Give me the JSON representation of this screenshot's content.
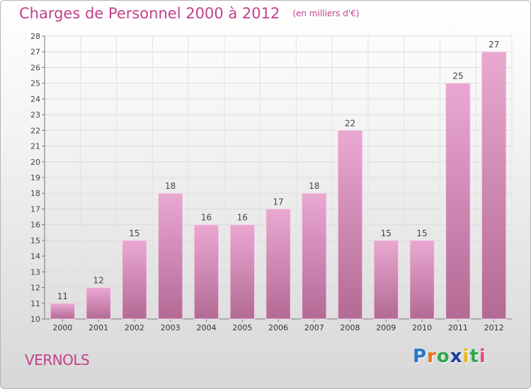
{
  "header": {
    "title": "Charges de Personnel 2000 à 2012",
    "unit": "(en milliers d'€)"
  },
  "footer": {
    "town": "VERNOLS"
  },
  "logo": {
    "letters": [
      "P",
      "r",
      "o",
      "x",
      "i",
      "t",
      "i"
    ],
    "colors": [
      "#2a76c6",
      "#e8731a",
      "#2fa84f",
      "#1a3e9c",
      "#e8b81a",
      "#2fa84f",
      "#e04a8a"
    ]
  },
  "colors": {
    "bar_top": "#e9a8d2",
    "bar_bottom": "#b36a95",
    "text": "#c0428a"
  },
  "chart_data": {
    "type": "bar",
    "title": "Charges de Personnel 2000 à 2012",
    "subtitle": "(en milliers d'€)",
    "xlabel": "",
    "ylabel": "",
    "categories": [
      "2000",
      "2001",
      "2002",
      "2003",
      "2004",
      "2005",
      "2006",
      "2007",
      "2008",
      "2009",
      "2010",
      "2011",
      "2012"
    ],
    "values": [
      11,
      12,
      15,
      18,
      16,
      16,
      17,
      18,
      22,
      15,
      15,
      25,
      27
    ],
    "ylim": [
      10,
      28
    ],
    "yticks": [
      10,
      11,
      12,
      13,
      14,
      15,
      16,
      17,
      18,
      19,
      20,
      21,
      22,
      23,
      24,
      25,
      26,
      27,
      28
    ],
    "grid": true,
    "legend": "none"
  }
}
